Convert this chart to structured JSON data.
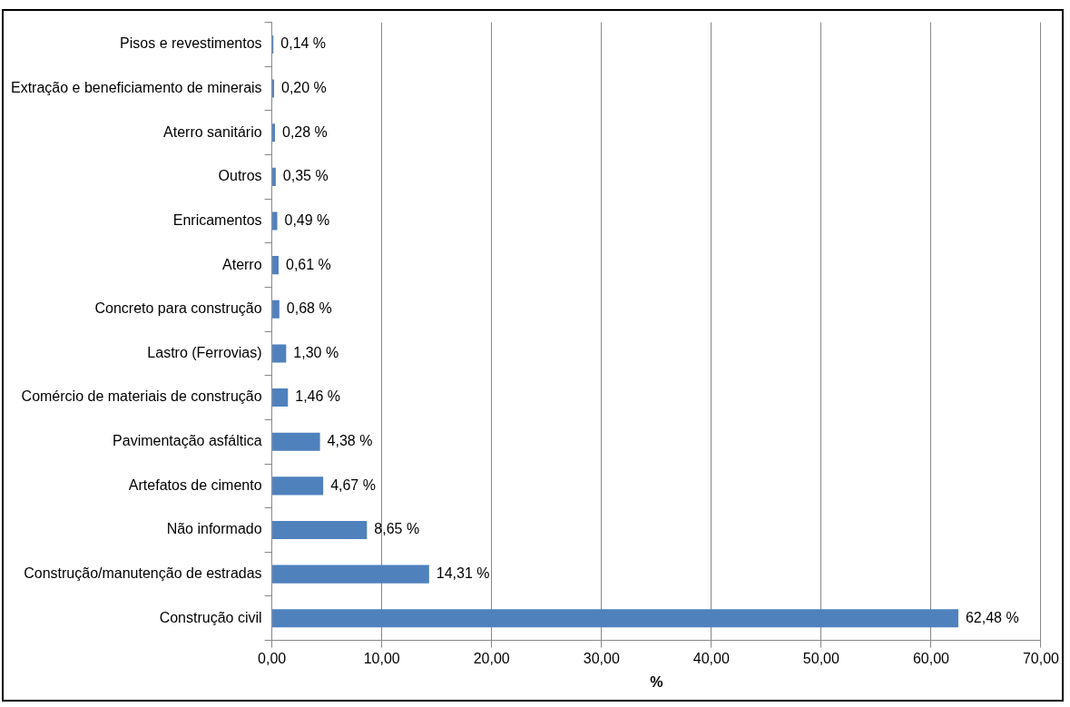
{
  "chart_data": {
    "type": "bar",
    "orientation": "horizontal",
    "xlabel": "%",
    "categories": [
      "Pisos e revestimentos",
      "Extração e beneficiamento de minerais",
      "Aterro sanitário",
      "Outros",
      "Enricamentos",
      "Aterro",
      "Concreto para construção",
      "Lastro (Ferrovias)",
      "Comércio de materiais de construção",
      "Pavimentação asfáltica",
      "Artefatos de cimento",
      "Não informado",
      "Construção/manutenção de estradas",
      "Construção civil"
    ],
    "values": [
      0.14,
      0.2,
      0.28,
      0.35,
      0.49,
      0.61,
      0.68,
      1.3,
      1.46,
      4.38,
      4.67,
      8.65,
      14.31,
      62.48
    ],
    "value_labels": [
      "0,14 %",
      "0,20 %",
      "0,28 %",
      "0,35 %",
      "0,49 %",
      "0,61 %",
      "0,68 %",
      "1,30 %",
      "1,46 %",
      "4,38 %",
      "4,67 %",
      "8,65 %",
      "14,31 %",
      "62,48 %"
    ],
    "color": "#4f81bd",
    "xlim": [
      0,
      70
    ],
    "xticks": [
      {
        "value": 0,
        "label": "0,00"
      },
      {
        "value": 10,
        "label": "10,00"
      },
      {
        "value": 20,
        "label": "20,00"
      },
      {
        "value": 30,
        "label": "30,00"
      },
      {
        "value": 40,
        "label": "40,00"
      },
      {
        "value": 50,
        "label": "50,00"
      },
      {
        "value": 60,
        "label": "60,00"
      },
      {
        "value": 70,
        "label": "70,00"
      }
    ],
    "grid": "x",
    "legend": false
  }
}
